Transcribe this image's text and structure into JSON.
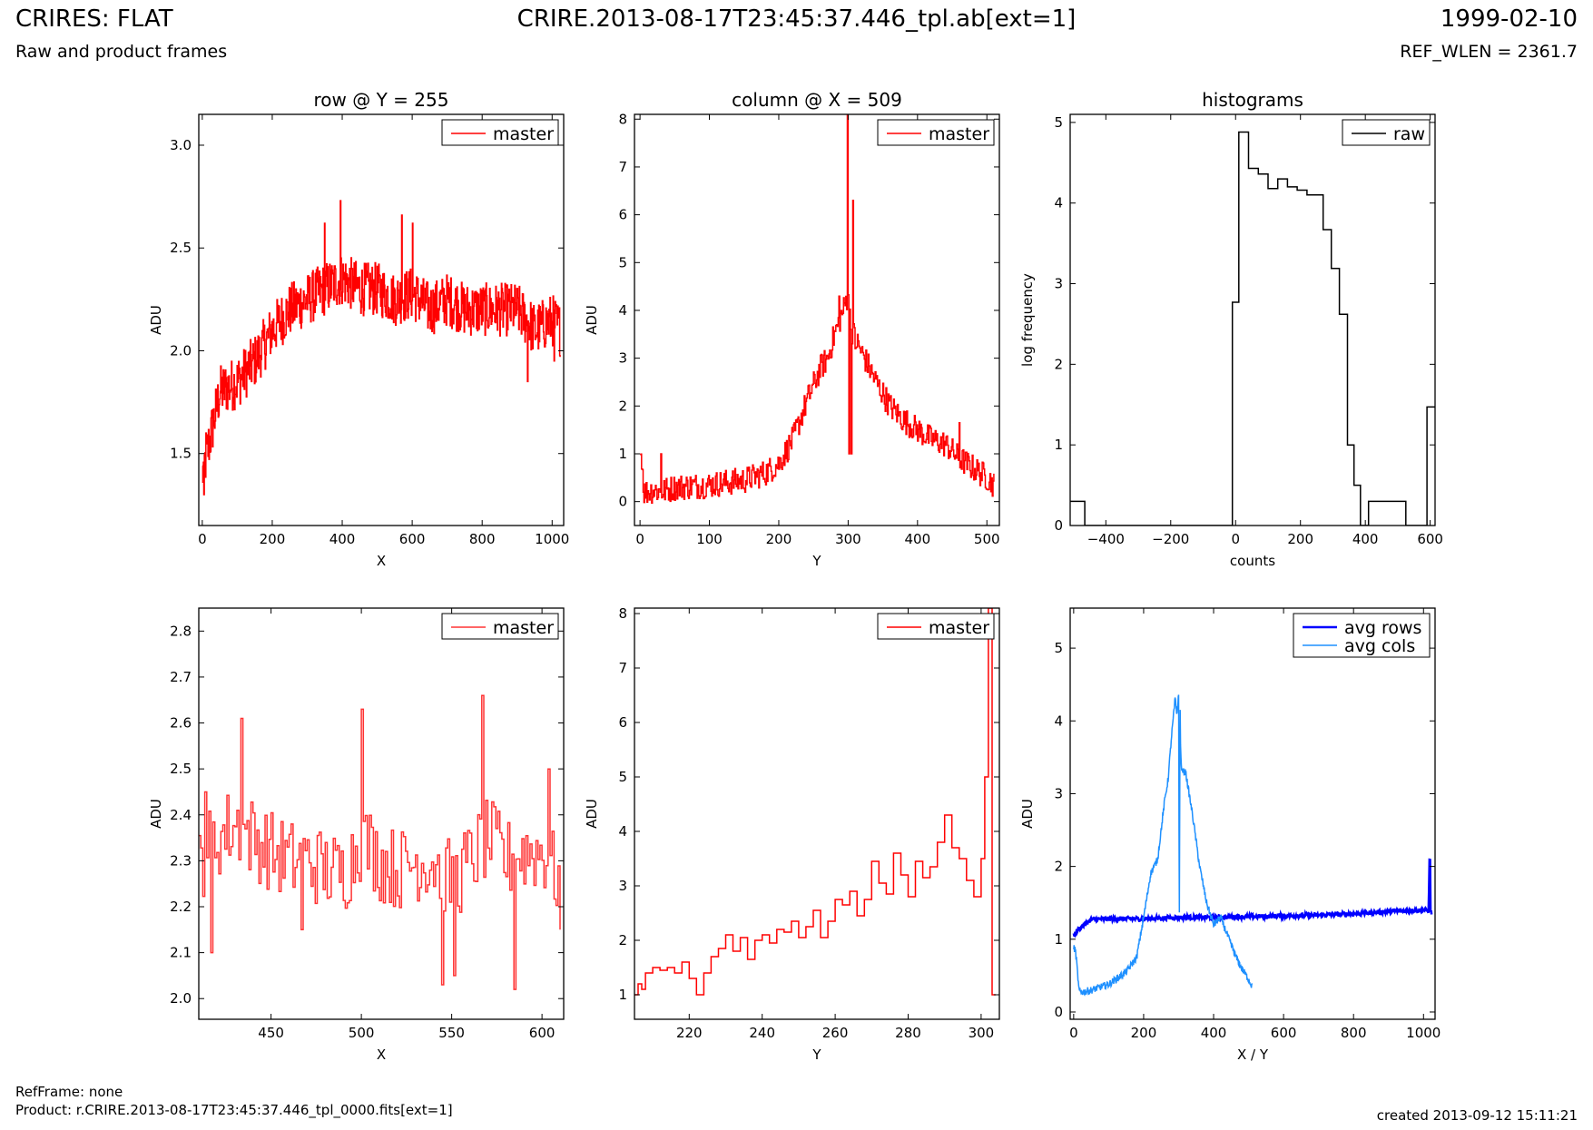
{
  "header": {
    "left_title": "CRIRES: FLAT",
    "left_subtitle": "Raw and product frames",
    "center_title": "CRIRE.2013-08-17T23:45:37.446_tpl.ab[ext=1]",
    "right_title": "1999-02-10",
    "right_subtitle": "REF_WLEN = 2361.7"
  },
  "footer": {
    "refframe": "RefFrame: none",
    "product": "Product: r.CRIRE.2013-08-17T23:45:37.446_tpl_0000.fits[ext=1]",
    "created": "created 2013-09-12 15:11:21"
  },
  "colors": {
    "master": "#ff0000",
    "master_zoom": "#ff3333",
    "raw": "#000000",
    "avg_rows": "#0000ff",
    "avg_cols": "#1e90ff"
  },
  "chart_data": [
    {
      "type": "line",
      "title": "row @ Y = 255",
      "xlabel": "X",
      "ylabel": "ADU",
      "xlim": [
        -10,
        1033
      ],
      "ylim": [
        1.15,
        3.15
      ],
      "xticks": [
        0,
        200,
        400,
        600,
        800,
        1000
      ],
      "yticks": [
        1.5,
        2.0,
        2.5,
        3.0
      ],
      "legend_position": "top-right",
      "series": [
        {
          "name": "master",
          "color": "#ff0000",
          "steps": true,
          "x": [
            0,
            50,
            100,
            150,
            200,
            250,
            300,
            350,
            400,
            450,
            500,
            550,
            600,
            650,
            700,
            750,
            800,
            850,
            900,
            950,
            1000,
            1023
          ],
          "y": [
            1.4,
            1.8,
            1.85,
            1.95,
            2.1,
            2.2,
            2.25,
            2.3,
            2.35,
            2.3,
            2.3,
            2.25,
            2.28,
            2.2,
            2.25,
            2.2,
            2.2,
            2.2,
            2.2,
            2.1,
            2.15,
            2.1
          ],
          "noise": 0.13,
          "peaks": [
            [
              5,
              1.3
            ],
            [
              10,
              1.6
            ],
            [
              395,
              2.73
            ],
            [
              350,
              2.62
            ],
            [
              570,
              2.66
            ],
            [
              600,
              2.62
            ],
            [
              930,
              1.85
            ],
            [
              1005,
              1.95
            ]
          ]
        }
      ]
    },
    {
      "type": "line",
      "title": "column @ X = 509",
      "xlabel": "Y",
      "ylabel": "ADU",
      "xlim": [
        -8,
        518
      ],
      "ylim": [
        -0.5,
        8.1
      ],
      "xticks": [
        0,
        100,
        200,
        300,
        400,
        500
      ],
      "yticks": [
        0,
        1,
        2,
        3,
        4,
        5,
        6,
        7,
        8
      ],
      "legend_position": "top-right",
      "series": [
        {
          "name": "master",
          "color": "#ff0000",
          "steps": true,
          "x": [
            0,
            2,
            5,
            8,
            20,
            30,
            50,
            100,
            150,
            180,
            200,
            220,
            240,
            260,
            270,
            280,
            290,
            295,
            300,
            305,
            310,
            320,
            340,
            360,
            380,
            400,
            420,
            440,
            460,
            480,
            500,
            510
          ],
          "y": [
            1.0,
            1.0,
            0.2,
            0.2,
            0.25,
            0.2,
            0.3,
            0.35,
            0.45,
            0.6,
            0.8,
            1.3,
            2.1,
            2.8,
            3.0,
            3.5,
            3.9,
            4.1,
            4.4,
            3.6,
            3.4,
            3.1,
            2.5,
            2.0,
            1.7,
            1.5,
            1.3,
            1.2,
            0.9,
            0.7,
            0.5,
            0.35
          ],
          "noise": 0.28,
          "peaks": [
            [
              30,
              1.0
            ],
            [
              33,
              0.15
            ],
            [
              287,
              4.3
            ],
            [
              299,
              8.1
            ],
            [
              301,
              1.0
            ],
            [
              305,
              1.0
            ],
            [
              307,
              6.3
            ],
            [
              310,
              3.2
            ],
            [
              460,
              1.65
            ]
          ]
        }
      ]
    },
    {
      "type": "line",
      "title": "histograms",
      "xlabel": "counts",
      "ylabel": "log frequency",
      "xlim": [
        -510,
        615
      ],
      "ylim": [
        0,
        5.1
      ],
      "xticks": [
        -400,
        -200,
        0,
        200,
        400,
        600
      ],
      "yticks": [
        0,
        1,
        2,
        3,
        4,
        5
      ],
      "legend_position": "top-right",
      "series": [
        {
          "name": "raw",
          "color": "#000000",
          "steps": true,
          "x": [
            -510,
            -485,
            -465,
            -40,
            -10,
            10,
            40,
            70,
            100,
            130,
            160,
            190,
            220,
            245,
            270,
            295,
            320,
            345,
            365,
            385,
            410,
            425,
            450,
            510,
            525,
            570,
            590,
            615
          ],
          "y": [
            0.3,
            0.3,
            0,
            0,
            2.77,
            4.88,
            4.43,
            4.36,
            4.18,
            4.3,
            4.2,
            4.16,
            4.1,
            4.1,
            3.67,
            3.19,
            2.62,
            1.0,
            0.5,
            0.0,
            0.3,
            0.3,
            0.3,
            0.3,
            0,
            0,
            1.47,
            1.47
          ]
        }
      ]
    },
    {
      "type": "line",
      "title": "",
      "xlabel": "X",
      "ylabel": "ADU",
      "xlim": [
        410,
        612
      ],
      "ylim": [
        1.955,
        2.85
      ],
      "xticks": [
        450,
        500,
        550,
        600
      ],
      "yticks": [
        2.0,
        2.1,
        2.2,
        2.3,
        2.4,
        2.5,
        2.6,
        2.7,
        2.8
      ],
      "legend_position": "top-right",
      "series": [
        {
          "name": "master",
          "color": "#ff3333",
          "steps": true,
          "x": [
            410,
            420,
            430,
            440,
            450,
            460,
            470,
            480,
            490,
            500,
            510,
            520,
            530,
            540,
            550,
            560,
            570,
            580,
            590,
            600,
            610
          ],
          "y": [
            2.3,
            2.35,
            2.38,
            2.35,
            2.32,
            2.3,
            2.3,
            2.28,
            2.27,
            2.35,
            2.3,
            2.28,
            2.3,
            2.3,
            2.25,
            2.3,
            2.35,
            2.3,
            2.32,
            2.32,
            2.25
          ],
          "noise": 0.09,
          "peaks": [
            [
              413,
              2.45
            ],
            [
              417,
              2.1
            ],
            [
              433,
              2.61
            ],
            [
              467,
              2.15
            ],
            [
              500,
              2.63
            ],
            [
              545,
              2.03
            ],
            [
              551,
              2.05
            ],
            [
              567,
              2.66
            ],
            [
              585,
              2.02
            ],
            [
              603,
              2.5
            ],
            [
              610,
              2.15
            ]
          ]
        }
      ]
    },
    {
      "type": "line",
      "title": "",
      "xlabel": "Y",
      "ylabel": "ADU",
      "xlim": [
        205,
        305
      ],
      "ylim": [
        0.55,
        8.1
      ],
      "xticks": [
        220,
        240,
        260,
        280,
        300
      ],
      "yticks": [
        1,
        2,
        3,
        4,
        5,
        6,
        7,
        8
      ],
      "legend_position": "top-right",
      "series": [
        {
          "name": "master",
          "color": "#ff0000",
          "steps": true,
          "x": [
            205,
            206,
            207,
            208,
            210,
            212,
            214,
            216,
            218,
            220,
            222,
            224,
            226,
            228,
            230,
            232,
            234,
            236,
            238,
            240,
            242,
            244,
            246,
            248,
            250,
            252,
            254,
            256,
            258,
            260,
            262,
            264,
            266,
            268,
            270,
            272,
            274,
            276,
            278,
            280,
            282,
            284,
            286,
            288,
            290,
            292,
            294,
            296,
            298,
            300,
            301,
            302,
            303,
            304
          ],
          "y": [
            1.0,
            1.2,
            1.1,
            1.4,
            1.5,
            1.45,
            1.5,
            1.4,
            1.6,
            1.3,
            1.0,
            1.4,
            1.7,
            1.85,
            2.1,
            1.8,
            2.05,
            1.65,
            2.0,
            2.1,
            1.95,
            2.2,
            2.15,
            2.35,
            2.05,
            2.25,
            2.55,
            2.05,
            2.35,
            2.75,
            2.65,
            2.9,
            2.45,
            2.75,
            3.45,
            3.05,
            2.85,
            3.6,
            3.2,
            2.8,
            3.45,
            3.15,
            3.35,
            3.8,
            4.3,
            3.7,
            3.5,
            3.1,
            2.8,
            3.5,
            5.0,
            8.1,
            1.0,
            1.0
          ]
        }
      ]
    },
    {
      "type": "line",
      "title": "",
      "xlabel": "X / Y",
      "ylabel": "ADU",
      "xlim": [
        -10,
        1033
      ],
      "ylim": [
        -0.1,
        5.55
      ],
      "xticks": [
        0,
        200,
        400,
        600,
        800,
        1000
      ],
      "yticks": [
        0,
        1,
        2,
        3,
        4,
        5
      ],
      "legend_position": "top-right",
      "series": [
        {
          "name": "avg rows",
          "color": "#0000ff",
          "x": [
            0,
            10,
            30,
            50,
            100,
            200,
            300,
            400,
            500,
            600,
            700,
            800,
            900,
            1000,
            1015,
            1018,
            1020,
            1023
          ],
          "y": [
            1.05,
            1.12,
            1.2,
            1.27,
            1.28,
            1.28,
            1.3,
            1.3,
            1.31,
            1.32,
            1.33,
            1.35,
            1.38,
            1.4,
            1.4,
            2.37,
            1.4,
            1.35
          ],
          "noise": 0.03
        },
        {
          "name": "avg cols",
          "color": "#1e90ff",
          "x": [
            0,
            5,
            10,
            15,
            20,
            30,
            50,
            100,
            150,
            180,
            200,
            220,
            240,
            260,
            270,
            280,
            290,
            295,
            300,
            302,
            304,
            306,
            310,
            320,
            340,
            360,
            380,
            400,
            420,
            440,
            460,
            480,
            500,
            510
          ],
          "y": [
            0.88,
            0.85,
            0.6,
            0.3,
            0.27,
            0.28,
            0.3,
            0.38,
            0.55,
            0.75,
            1.3,
            1.9,
            2.1,
            2.9,
            3.2,
            3.8,
            4.3,
            4.1,
            4.35,
            1.0,
            4.3,
            3.5,
            3.3,
            3.3,
            2.7,
            2.0,
            1.5,
            1.2,
            1.3,
            1.05,
            0.8,
            0.6,
            0.45,
            0.35
          ],
          "noise": 0.05
        }
      ]
    }
  ]
}
